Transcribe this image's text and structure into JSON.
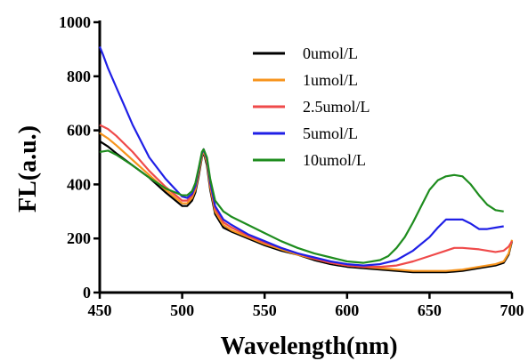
{
  "chart_data": {
    "type": "line",
    "title": "",
    "xlabel": "Wavelength(nm)",
    "ylabel": "FL(a.u.)",
    "xlim": [
      450,
      700
    ],
    "ylim": [
      0,
      1000
    ],
    "xticks": [
      450,
      500,
      550,
      600,
      650,
      700
    ],
    "yticks": [
      0,
      200,
      400,
      600,
      800,
      1000
    ],
    "grid": false,
    "legend_position": "top-right",
    "series": [
      {
        "name": "0umol/L",
        "color": "#000000",
        "x": [
          450,
          455,
          460,
          470,
          480,
          490,
          500,
          503,
          506,
          508,
          510,
          512,
          513,
          515,
          517,
          520,
          525,
          530,
          540,
          550,
          560,
          570,
          580,
          590,
          600,
          610,
          620,
          630,
          640,
          650,
          660,
          670,
          680,
          690,
          695,
          698,
          700
        ],
        "y": [
          560,
          540,
          515,
          470,
          425,
          370,
          320,
          320,
          340,
          370,
          430,
          500,
          520,
          470,
          380,
          290,
          240,
          225,
          200,
          175,
          155,
          140,
          120,
          105,
          95,
          90,
          85,
          80,
          75,
          75,
          75,
          80,
          90,
          100,
          110,
          140,
          190
        ]
      },
      {
        "name": "1umol/L",
        "color": "#f7941d",
        "x": [
          450,
          455,
          460,
          470,
          480,
          490,
          500,
          503,
          506,
          508,
          510,
          512,
          513,
          515,
          517,
          520,
          525,
          530,
          540,
          550,
          560,
          570,
          580,
          590,
          600,
          610,
          620,
          630,
          640,
          650,
          660,
          670,
          680,
          690,
          695,
          698,
          700
        ],
        "y": [
          590,
          570,
          545,
          490,
          435,
          380,
          330,
          330,
          350,
          380,
          440,
          505,
          525,
          480,
          390,
          300,
          250,
          230,
          205,
          180,
          160,
          140,
          125,
          110,
          100,
          95,
          90,
          85,
          80,
          80,
          80,
          85,
          95,
          105,
          115,
          145,
          195
        ]
      },
      {
        "name": "2.5umol/L",
        "color": "#ef4a4a",
        "x": [
          450,
          455,
          460,
          470,
          480,
          490,
          500,
          503,
          506,
          508,
          510,
          512,
          513,
          515,
          517,
          520,
          525,
          530,
          540,
          550,
          560,
          570,
          580,
          590,
          600,
          610,
          620,
          630,
          640,
          650,
          660,
          665,
          670,
          680,
          690,
          695,
          698,
          700
        ],
        "y": [
          620,
          605,
          580,
          520,
          450,
          390,
          340,
          340,
          360,
          390,
          450,
          515,
          530,
          490,
          400,
          310,
          260,
          240,
          210,
          185,
          165,
          145,
          125,
          110,
          100,
          95,
          95,
          100,
          115,
          135,
          155,
          165,
          165,
          160,
          150,
          155,
          170,
          190
        ]
      },
      {
        "name": "5umol/L",
        "color": "#1f1fe6",
        "x": [
          450,
          452,
          455,
          460,
          465,
          470,
          480,
          490,
          500,
          503,
          506,
          508,
          510,
          512,
          513,
          515,
          517,
          520,
          525,
          530,
          540,
          550,
          560,
          570,
          580,
          590,
          600,
          610,
          620,
          630,
          640,
          650,
          655,
          660,
          665,
          670,
          675,
          680,
          685,
          690,
          695
        ],
        "y": [
          910,
          880,
          830,
          760,
          690,
          620,
          500,
          420,
          355,
          350,
          365,
          395,
          455,
          515,
          530,
          495,
          410,
          320,
          270,
          250,
          215,
          190,
          165,
          145,
          130,
          115,
          105,
          100,
          105,
          120,
          155,
          205,
          240,
          270,
          270,
          270,
          255,
          235,
          235,
          240,
          245
        ]
      },
      {
        "name": "10umol/L",
        "color": "#1e8c1e",
        "x": [
          450,
          455,
          460,
          470,
          480,
          490,
          500,
          503,
          506,
          508,
          510,
          512,
          513,
          515,
          517,
          520,
          525,
          530,
          540,
          550,
          560,
          570,
          580,
          590,
          600,
          610,
          620,
          625,
          630,
          635,
          640,
          645,
          650,
          655,
          660,
          665,
          670,
          675,
          680,
          685,
          690,
          695
        ],
        "y": [
          520,
          525,
          510,
          470,
          425,
          385,
          360,
          360,
          375,
          405,
          460,
          520,
          530,
          500,
          420,
          340,
          300,
          280,
          250,
          220,
          190,
          165,
          145,
          130,
          115,
          110,
          120,
          135,
          165,
          205,
          260,
          320,
          380,
          415,
          430,
          435,
          430,
          400,
          360,
          325,
          305,
          300
        ]
      }
    ]
  }
}
